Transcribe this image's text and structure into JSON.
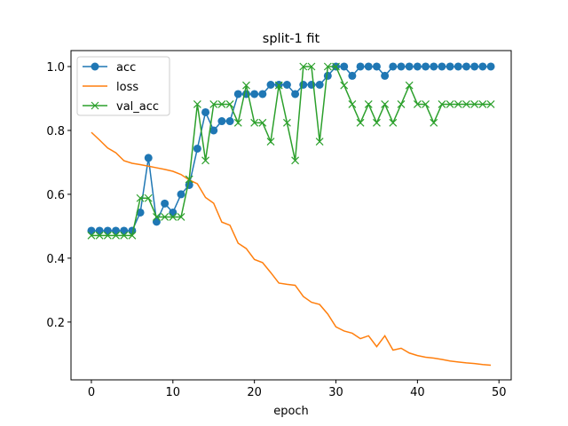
{
  "chart_data": {
    "type": "line",
    "title": "split-1 fit",
    "xlabel": "epoch",
    "ylabel": "",
    "xlim": [
      -2.5,
      51.5
    ],
    "ylim": [
      0.019,
      1.05
    ],
    "xticks": [
      0,
      10,
      20,
      30,
      40,
      50
    ],
    "yticks": [
      0.2,
      0.4,
      0.6,
      0.8,
      1.0
    ],
    "ytick_labels": [
      "0.2",
      "0.4",
      "0.6",
      "0.8",
      "1.0"
    ],
    "grid": false,
    "legend_position": "top-left",
    "x": [
      0,
      1,
      2,
      3,
      4,
      5,
      6,
      7,
      8,
      9,
      10,
      11,
      12,
      13,
      14,
      15,
      16,
      17,
      18,
      19,
      20,
      21,
      22,
      23,
      24,
      25,
      26,
      27,
      28,
      29,
      30,
      31,
      32,
      33,
      34,
      35,
      36,
      37,
      38,
      39,
      40,
      41,
      42,
      43,
      44,
      45,
      46,
      47,
      48,
      49
    ],
    "series": [
      {
        "name": "acc",
        "color": "#1f77b4",
        "marker": "circle",
        "values": [
          0.486,
          0.486,
          0.486,
          0.486,
          0.486,
          0.486,
          0.543,
          0.714,
          0.514,
          0.571,
          0.543,
          0.6,
          0.629,
          0.743,
          0.857,
          0.8,
          0.829,
          0.829,
          0.914,
          0.914,
          0.914,
          0.914,
          0.943,
          0.943,
          0.943,
          0.914,
          0.943,
          0.943,
          0.943,
          0.971,
          1.0,
          1.0,
          0.971,
          1.0,
          1.0,
          1.0,
          0.971,
          1.0,
          1.0,
          1.0,
          1.0,
          1.0,
          1.0,
          1.0,
          1.0,
          1.0,
          1.0,
          1.0,
          1.0,
          1.0
        ]
      },
      {
        "name": "loss",
        "color": "#ff7f0e",
        "marker": "none",
        "values": [
          0.794,
          0.77,
          0.745,
          0.73,
          0.705,
          0.697,
          0.693,
          0.688,
          0.683,
          0.678,
          0.672,
          0.662,
          0.645,
          0.633,
          0.59,
          0.572,
          0.513,
          0.503,
          0.447,
          0.43,
          0.396,
          0.386,
          0.355,
          0.322,
          0.318,
          0.315,
          0.28,
          0.262,
          0.255,
          0.225,
          0.185,
          0.172,
          0.165,
          0.148,
          0.157,
          0.123,
          0.157,
          0.112,
          0.118,
          0.103,
          0.095,
          0.09,
          0.087,
          0.083,
          0.078,
          0.075,
          0.072,
          0.07,
          0.067,
          0.065
        ]
      },
      {
        "name": "val_acc",
        "color": "#2ca02c",
        "marker": "x",
        "values": [
          0.471,
          0.471,
          0.471,
          0.471,
          0.471,
          0.471,
          0.588,
          0.588,
          0.529,
          0.529,
          0.529,
          0.529,
          0.647,
          0.882,
          0.706,
          0.882,
          0.882,
          0.882,
          0.824,
          0.941,
          0.824,
          0.824,
          0.765,
          0.941,
          0.824,
          0.706,
          1.0,
          1.0,
          0.765,
          1.0,
          1.0,
          0.941,
          0.882,
          0.824,
          0.882,
          0.824,
          0.882,
          0.824,
          0.882,
          0.941,
          0.882,
          0.882,
          0.824,
          0.882,
          0.882,
          0.882,
          0.882,
          0.882,
          0.882,
          0.882
        ]
      }
    ]
  }
}
